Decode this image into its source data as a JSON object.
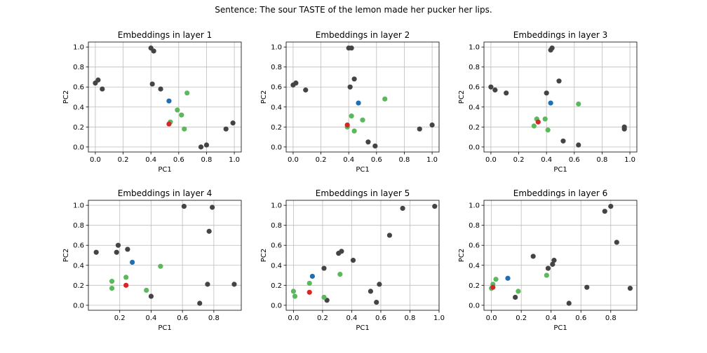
{
  "suptitle": "Sentence: The sour TASTE of the lemon made her pucker her lips.",
  "colors": {
    "other": "#444444",
    "context": "#5cb85c",
    "target": "#1f6fb4",
    "predicted": "#d62728",
    "grid": "#bdbdbd"
  },
  "chart_data": [
    {
      "type": "scatter",
      "title": "Embeddings in layer 1",
      "xlabel": "PC1",
      "ylabel": "PC2",
      "xlim": [
        -0.05,
        1.05
      ],
      "ylim": [
        -0.05,
        1.05
      ],
      "xticks": [
        "0.0",
        "0.2",
        "0.4",
        "0.6",
        "0.8",
        "1.0"
      ],
      "yticks": [
        "0.0",
        "0.2",
        "0.4",
        "0.6",
        "0.8",
        "1.0"
      ],
      "grid": true,
      "points": {
        "other": [
          [
            0.4,
            0.99
          ],
          [
            0.42,
            0.96
          ],
          [
            0.0,
            0.64
          ],
          [
            0.02,
            0.67
          ],
          [
            0.05,
            0.58
          ],
          [
            0.41,
            0.63
          ],
          [
            0.47,
            0.58
          ],
          [
            0.76,
            0.0
          ],
          [
            0.8,
            0.02
          ],
          [
            0.94,
            0.18
          ],
          [
            0.99,
            0.24
          ]
        ],
        "context": [
          [
            0.66,
            0.54
          ],
          [
            0.59,
            0.37
          ],
          [
            0.62,
            0.32
          ],
          [
            0.54,
            0.25
          ],
          [
            0.64,
            0.18
          ]
        ],
        "target": [
          [
            0.53,
            0.46
          ]
        ],
        "predicted": [
          [
            0.53,
            0.23
          ]
        ]
      }
    },
    {
      "type": "scatter",
      "title": "Embeddings in layer 2",
      "xlabel": "PC1",
      "ylabel": "PC2",
      "xlim": [
        -0.05,
        1.05
      ],
      "ylim": [
        -0.05,
        1.05
      ],
      "xticks": [
        "0.0",
        "0.2",
        "0.4",
        "0.6",
        "0.8",
        "1.0"
      ],
      "yticks": [
        "0.0",
        "0.2",
        "0.4",
        "0.6",
        "0.8",
        "1.0"
      ],
      "grid": true,
      "points": {
        "other": [
          [
            0.4,
            0.99
          ],
          [
            0.42,
            0.99
          ],
          [
            0.0,
            0.62
          ],
          [
            0.02,
            0.64
          ],
          [
            0.09,
            0.57
          ],
          [
            0.44,
            0.68
          ],
          [
            0.41,
            0.6
          ],
          [
            0.54,
            0.05
          ],
          [
            0.59,
            0.01
          ],
          [
            0.91,
            0.18
          ],
          [
            1.0,
            0.22
          ]
        ],
        "context": [
          [
            0.66,
            0.48
          ],
          [
            0.42,
            0.31
          ],
          [
            0.5,
            0.27
          ],
          [
            0.44,
            0.16
          ],
          [
            0.39,
            0.2
          ]
        ],
        "target": [
          [
            0.47,
            0.44
          ]
        ],
        "predicted": [
          [
            0.39,
            0.22
          ]
        ]
      }
    },
    {
      "type": "scatter",
      "title": "Embeddings in layer 3",
      "xlabel": "PC1",
      "ylabel": "PC2",
      "xlim": [
        -0.05,
        1.05
      ],
      "ylim": [
        -0.05,
        1.05
      ],
      "xticks": [
        "0.0",
        "0.2",
        "0.4",
        "0.6",
        "0.8",
        "1.0"
      ],
      "yticks": [
        "0.0",
        "0.2",
        "0.4",
        "0.6",
        "0.8",
        "1.0"
      ],
      "grid": true,
      "points": {
        "other": [
          [
            0.44,
            0.99
          ],
          [
            0.43,
            0.97
          ],
          [
            0.0,
            0.6
          ],
          [
            0.03,
            0.57
          ],
          [
            0.11,
            0.54
          ],
          [
            0.49,
            0.66
          ],
          [
            0.4,
            0.54
          ],
          [
            0.52,
            0.06
          ],
          [
            0.63,
            0.02
          ],
          [
            0.96,
            0.18
          ],
          [
            0.96,
            0.2
          ]
        ],
        "context": [
          [
            0.63,
            0.43
          ],
          [
            0.33,
            0.28
          ],
          [
            0.39,
            0.28
          ],
          [
            0.31,
            0.21
          ],
          [
            0.41,
            0.17
          ]
        ],
        "target": [
          [
            0.43,
            0.44
          ]
        ],
        "predicted": [
          [
            0.34,
            0.25
          ]
        ]
      }
    },
    {
      "type": "scatter",
      "title": "Embeddings in layer 4",
      "xlabel": "PC1",
      "ylabel": "PC2",
      "xlim": [
        0.0,
        0.975
      ],
      "ylim": [
        -0.05,
        1.05
      ],
      "xticks": [
        "0.2",
        "0.4",
        "0.6",
        "0.8"
      ],
      "yticks": [
        "0.0",
        "0.2",
        "0.4",
        "0.6",
        "0.8",
        "1.0"
      ],
      "grid": true,
      "points": {
        "other": [
          [
            0.61,
            0.99
          ],
          [
            0.79,
            0.98
          ],
          [
            0.05,
            0.53
          ],
          [
            0.18,
            0.53
          ],
          [
            0.19,
            0.6
          ],
          [
            0.25,
            0.56
          ],
          [
            0.77,
            0.74
          ],
          [
            0.76,
            0.21
          ],
          [
            0.93,
            0.21
          ],
          [
            0.4,
            0.09
          ],
          [
            0.71,
            0.02
          ]
        ],
        "context": [
          [
            0.46,
            0.39
          ],
          [
            0.15,
            0.24
          ],
          [
            0.24,
            0.28
          ],
          [
            0.15,
            0.17
          ],
          [
            0.37,
            0.15
          ]
        ],
        "target": [
          [
            0.28,
            0.43
          ]
        ],
        "predicted": [
          [
            0.24,
            0.2
          ]
        ]
      }
    },
    {
      "type": "scatter",
      "title": "Embeddings in layer 5",
      "xlabel": "PC1",
      "ylabel": "PC2",
      "xlim": [
        -0.05,
        1.0
      ],
      "ylim": [
        -0.05,
        1.05
      ],
      "xticks": [
        "0.0",
        "0.2",
        "0.4",
        "0.6",
        "0.8",
        "1.0"
      ],
      "yticks": [
        "0.0",
        "0.2",
        "0.4",
        "0.6",
        "0.8",
        "1.0"
      ],
      "grid": true,
      "points": {
        "other": [
          [
            0.97,
            0.99
          ],
          [
            0.75,
            0.97
          ],
          [
            0.66,
            0.7
          ],
          [
            0.33,
            0.54
          ],
          [
            0.31,
            0.52
          ],
          [
            0.41,
            0.45
          ],
          [
            0.21,
            0.37
          ],
          [
            0.59,
            0.21
          ],
          [
            0.53,
            0.14
          ],
          [
            0.57,
            0.03
          ],
          [
            0.23,
            0.05
          ]
        ],
        "context": [
          [
            0.32,
            0.31
          ],
          [
            0.0,
            0.14
          ],
          [
            0.01,
            0.09
          ],
          [
            0.11,
            0.22
          ],
          [
            0.21,
            0.08
          ]
        ],
        "target": [
          [
            0.13,
            0.29
          ]
        ],
        "predicted": [
          [
            0.11,
            0.13
          ]
        ]
      }
    },
    {
      "type": "scatter",
      "title": "Embeddings in layer 6",
      "xlabel": "PC1",
      "ylabel": "PC2",
      "xlim": [
        -0.05,
        0.975
      ],
      "ylim": [
        -0.05,
        1.05
      ],
      "xticks": [
        "0.0",
        "0.2",
        "0.4",
        "0.6",
        "0.8"
      ],
      "yticks": [
        "0.0",
        "0.2",
        "0.4",
        "0.6",
        "0.8",
        "1.0"
      ],
      "grid": true,
      "points": {
        "other": [
          [
            0.8,
            0.99
          ],
          [
            0.76,
            0.94
          ],
          [
            0.84,
            0.63
          ],
          [
            0.28,
            0.49
          ],
          [
            0.42,
            0.45
          ],
          [
            0.41,
            0.41
          ],
          [
            0.38,
            0.37
          ],
          [
            0.64,
            0.18
          ],
          [
            0.93,
            0.17
          ],
          [
            0.16,
            0.08
          ],
          [
            0.52,
            0.02
          ]
        ],
        "context": [
          [
            0.03,
            0.26
          ],
          [
            0.01,
            0.21
          ],
          [
            0.0,
            0.17
          ],
          [
            0.18,
            0.14
          ],
          [
            0.37,
            0.3
          ]
        ],
        "target": [
          [
            0.11,
            0.27
          ]
        ],
        "predicted": [
          [
            0.01,
            0.18
          ]
        ]
      }
    }
  ]
}
